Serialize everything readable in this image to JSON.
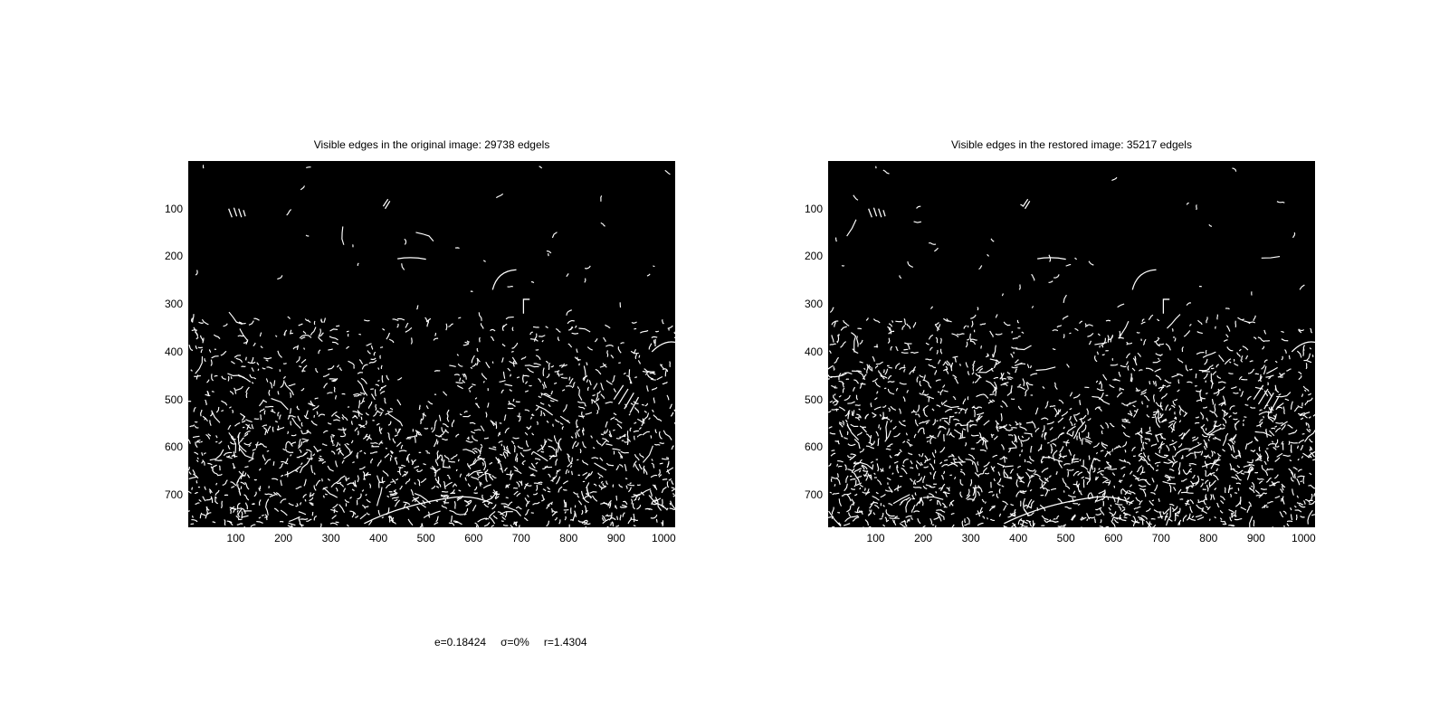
{
  "panels": [
    {
      "title": "Visible edges in the original image: 29738 edgels",
      "x_ticks": [
        "100",
        "200",
        "300",
        "400",
        "500",
        "600",
        "700",
        "800",
        "900",
        "1000"
      ],
      "y_ticks": [
        "100",
        "200",
        "300",
        "400",
        "500",
        "600",
        "700"
      ],
      "edgels": 29738
    },
    {
      "title": "Visible edges in the restored image: 35217 edgels",
      "x_ticks": [
        "100",
        "200",
        "300",
        "400",
        "500",
        "600",
        "700",
        "800",
        "900",
        "1000"
      ],
      "y_ticks": [
        "100",
        "200",
        "300",
        "400",
        "500",
        "600",
        "700"
      ],
      "edgels": 35217
    }
  ],
  "axis": {
    "x_max": 1024,
    "y_max": 768
  },
  "footer": {
    "e": "e=0.18424",
    "sigma": "σ=0%",
    "r": "r=1.4304"
  },
  "colors": {
    "background": "#000000",
    "edge": "#ffffff",
    "figure": "#ffffff"
  }
}
